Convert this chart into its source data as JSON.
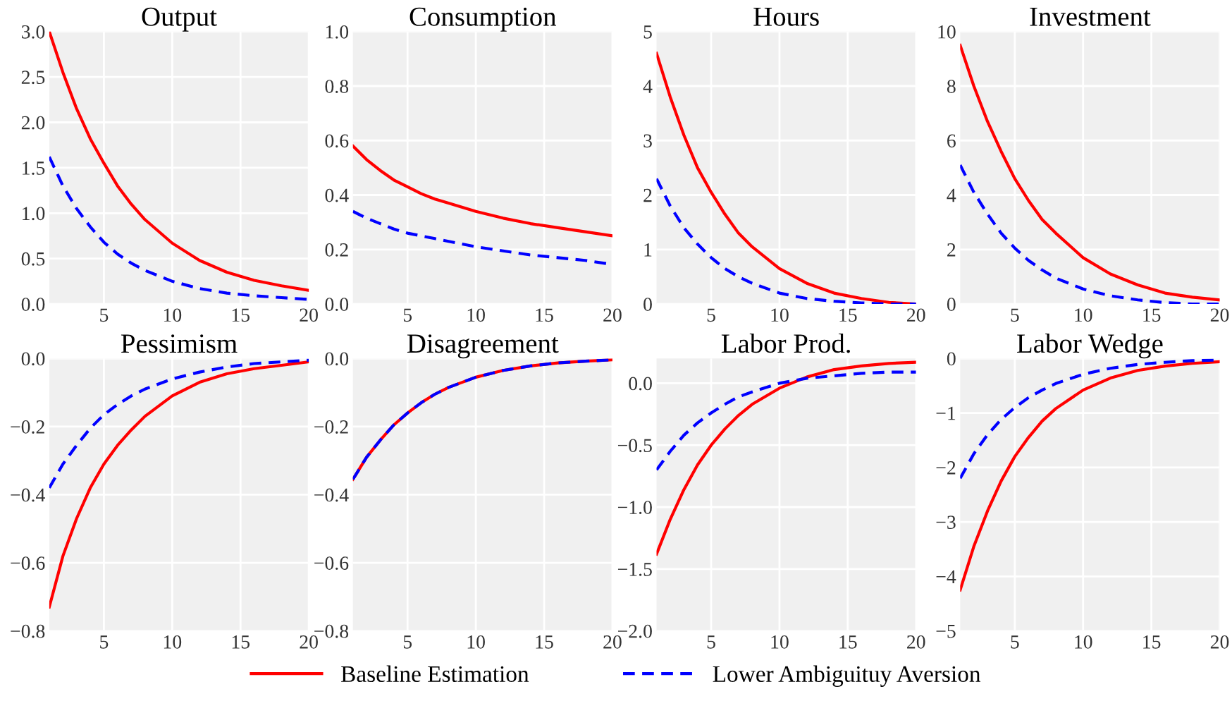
{
  "chart_data": [
    {
      "type": "line",
      "title": "Output",
      "x": [
        1,
        2,
        3,
        4,
        5,
        6,
        7,
        8,
        10,
        12,
        14,
        16,
        18,
        20
      ],
      "xlim": [
        1,
        20
      ],
      "xticks": [
        5,
        10,
        15,
        20
      ],
      "ylim": [
        0,
        3
      ],
      "yticks": [
        {
          "value": 0,
          "label": "0.0"
        },
        {
          "value": 0.5,
          "label": "0.5"
        },
        {
          "value": 1,
          "label": "1.0"
        },
        {
          "value": 1.5,
          "label": "1.5"
        },
        {
          "value": 2,
          "label": "2.0"
        },
        {
          "value": 2.5,
          "label": "2.5"
        },
        {
          "value": 3,
          "label": "3.0"
        }
      ],
      "grid": true,
      "legend": "bottom",
      "series": [
        {
          "name": "Baseline Estimation",
          "color": "#ff0000",
          "line_style": "solid",
          "values": [
            3.0,
            2.55,
            2.15,
            1.82,
            1.55,
            1.3,
            1.1,
            0.93,
            0.67,
            0.48,
            0.35,
            0.26,
            0.2,
            0.15
          ]
        },
        {
          "name": "Lower Ambiguituy Aversion",
          "color": "#0000ff",
          "line_style": "dashed",
          "values": [
            1.62,
            1.3,
            1.05,
            0.85,
            0.68,
            0.55,
            0.45,
            0.37,
            0.25,
            0.17,
            0.12,
            0.09,
            0.07,
            0.05
          ]
        }
      ]
    },
    {
      "type": "line",
      "title": "Consumption",
      "x": [
        1,
        2,
        3,
        4,
        5,
        6,
        7,
        8,
        10,
        12,
        14,
        16,
        18,
        20
      ],
      "xlim": [
        1,
        20
      ],
      "xticks": [
        5,
        10,
        15,
        20
      ],
      "ylim": [
        0,
        1
      ],
      "yticks": [
        {
          "value": 0,
          "label": "0.0"
        },
        {
          "value": 0.2,
          "label": "0.2"
        },
        {
          "value": 0.4,
          "label": "0.4"
        },
        {
          "value": 0.6,
          "label": "0.6"
        },
        {
          "value": 0.8,
          "label": "0.8"
        },
        {
          "value": 1,
          "label": "1.0"
        }
      ],
      "grid": true,
      "series": [
        {
          "name": "Baseline Estimation",
          "color": "#ff0000",
          "line_style": "solid",
          "values": [
            0.58,
            0.53,
            0.49,
            0.455,
            0.43,
            0.405,
            0.385,
            0.37,
            0.34,
            0.315,
            0.295,
            0.28,
            0.265,
            0.25
          ]
        },
        {
          "name": "Lower Ambiguituy Aversion",
          "color": "#0000ff",
          "line_style": "dashed",
          "values": [
            0.34,
            0.315,
            0.295,
            0.275,
            0.26,
            0.25,
            0.24,
            0.23,
            0.21,
            0.195,
            0.18,
            0.17,
            0.16,
            0.145
          ]
        }
      ]
    },
    {
      "type": "line",
      "title": "Hours",
      "x": [
        1,
        2,
        3,
        4,
        5,
        6,
        7,
        8,
        10,
        12,
        14,
        16,
        18,
        20
      ],
      "xlim": [
        1,
        20
      ],
      "xticks": [
        5,
        10,
        15,
        20
      ],
      "ylim": [
        0,
        5
      ],
      "yticks": [
        0,
        1,
        2,
        3,
        4,
        5
      ],
      "grid": true,
      "series": [
        {
          "name": "Baseline Estimation",
          "color": "#ff0000",
          "line_style": "solid",
          "values": [
            4.6,
            3.8,
            3.1,
            2.5,
            2.05,
            1.65,
            1.3,
            1.05,
            0.65,
            0.38,
            0.2,
            0.1,
            0.03,
            0
          ]
        },
        {
          "name": "Lower Ambiguituy Aversion",
          "color": "#0000ff",
          "line_style": "dashed",
          "values": [
            2.3,
            1.8,
            1.4,
            1.1,
            0.85,
            0.65,
            0.5,
            0.38,
            0.2,
            0.1,
            0.05,
            0.02,
            0,
            0
          ]
        }
      ]
    },
    {
      "type": "line",
      "title": "Investment",
      "x": [
        1,
        2,
        3,
        4,
        5,
        6,
        7,
        8,
        10,
        12,
        14,
        16,
        18,
        20
      ],
      "xlim": [
        1,
        20
      ],
      "xticks": [
        5,
        10,
        15,
        20
      ],
      "ylim": [
        0,
        10
      ],
      "yticks": [
        0,
        2,
        4,
        6,
        8,
        10
      ],
      "grid": true,
      "series": [
        {
          "name": "Baseline Estimation",
          "color": "#ff0000",
          "line_style": "solid",
          "values": [
            9.5,
            8.0,
            6.7,
            5.6,
            4.6,
            3.8,
            3.1,
            2.6,
            1.7,
            1.1,
            0.7,
            0.4,
            0.25,
            0.15
          ]
        },
        {
          "name": "Lower Ambiguituy Aversion",
          "color": "#0000ff",
          "line_style": "dashed",
          "values": [
            5.1,
            4.1,
            3.3,
            2.6,
            2.05,
            1.6,
            1.25,
            0.95,
            0.55,
            0.3,
            0.15,
            0.05,
            0,
            0
          ]
        }
      ]
    },
    {
      "type": "line",
      "title": "Pessimism",
      "x": [
        1,
        2,
        3,
        4,
        5,
        6,
        7,
        8,
        10,
        12,
        14,
        16,
        18,
        20
      ],
      "xlim": [
        1,
        20
      ],
      "xticks": [
        5,
        10,
        15,
        20
      ],
      "ylim": [
        -0.8,
        0
      ],
      "yticks": [
        {
          "value": -0.8,
          "label": "−0.8"
        },
        {
          "value": -0.6,
          "label": "−0.6"
        },
        {
          "value": -0.4,
          "label": "−0.4"
        },
        {
          "value": -0.2,
          "label": "−0.2"
        },
        {
          "value": 0,
          "label": "0.0"
        }
      ],
      "grid": true,
      "series": [
        {
          "name": "Baseline Estimation",
          "color": "#ff0000",
          "line_style": "solid",
          "values": [
            -0.73,
            -0.58,
            -0.47,
            -0.38,
            -0.31,
            -0.255,
            -0.21,
            -0.17,
            -0.11,
            -0.07,
            -0.045,
            -0.03,
            -0.02,
            -0.01
          ]
        },
        {
          "name": "Lower Ambiguituy Aversion",
          "color": "#0000ff",
          "line_style": "dashed",
          "values": [
            -0.38,
            -0.31,
            -0.255,
            -0.205,
            -0.165,
            -0.135,
            -0.11,
            -0.09,
            -0.06,
            -0.04,
            -0.025,
            -0.015,
            -0.01,
            -0.005
          ]
        }
      ]
    },
    {
      "type": "line",
      "title": "Disagreement",
      "x": [
        1,
        2,
        3,
        4,
        5,
        6,
        7,
        8,
        10,
        12,
        14,
        16,
        18,
        20
      ],
      "xlim": [
        1,
        20
      ],
      "xticks": [
        5,
        10,
        15,
        20
      ],
      "ylim": [
        -0.8,
        0
      ],
      "yticks": [
        {
          "value": -0.8,
          "label": "−0.8"
        },
        {
          "value": -0.6,
          "label": "−0.6"
        },
        {
          "value": -0.4,
          "label": "−0.4"
        },
        {
          "value": -0.2,
          "label": "−0.2"
        },
        {
          "value": 0,
          "label": "0.0"
        }
      ],
      "grid": true,
      "series": [
        {
          "name": "Baseline Estimation",
          "color": "#ff0000",
          "line_style": "solid",
          "values": [
            -0.355,
            -0.29,
            -0.24,
            -0.195,
            -0.16,
            -0.13,
            -0.105,
            -0.085,
            -0.055,
            -0.035,
            -0.022,
            -0.013,
            -0.008,
            -0.004
          ]
        },
        {
          "name": "Lower Ambiguituy Aversion",
          "color": "#0000ff",
          "line_style": "dashed",
          "values": [
            -0.355,
            -0.29,
            -0.24,
            -0.195,
            -0.16,
            -0.13,
            -0.105,
            -0.085,
            -0.055,
            -0.035,
            -0.022,
            -0.013,
            -0.008,
            -0.004
          ]
        }
      ]
    },
    {
      "type": "line",
      "title": "Labor Prod.",
      "x": [
        1,
        2,
        3,
        4,
        5,
        6,
        7,
        8,
        10,
        12,
        14,
        16,
        18,
        20
      ],
      "xlim": [
        1,
        20
      ],
      "xticks": [
        5,
        10,
        15,
        20
      ],
      "ylim": [
        -2,
        0.2
      ],
      "yticks": [
        {
          "value": -2,
          "label": "−2.0"
        },
        {
          "value": -1.5,
          "label": "−1.5"
        },
        {
          "value": -1,
          "label": "−1.0"
        },
        {
          "value": -0.5,
          "label": "−0.5"
        },
        {
          "value": 0,
          "label": "0.0"
        }
      ],
      "grid": true,
      "series": [
        {
          "name": "Baseline Estimation",
          "color": "#ff0000",
          "line_style": "solid",
          "values": [
            -1.38,
            -1.1,
            -0.86,
            -0.66,
            -0.5,
            -0.37,
            -0.26,
            -0.17,
            -0.04,
            0.05,
            0.11,
            0.14,
            0.16,
            0.17
          ]
        },
        {
          "name": "Lower Ambiguituy Aversion",
          "color": "#0000ff",
          "line_style": "dashed",
          "values": [
            -0.7,
            -0.55,
            -0.42,
            -0.32,
            -0.24,
            -0.17,
            -0.11,
            -0.07,
            0.0,
            0.04,
            0.06,
            0.08,
            0.09,
            0.09
          ]
        }
      ]
    },
    {
      "type": "line",
      "title": "Labor Wedge",
      "x": [
        1,
        2,
        3,
        4,
        5,
        6,
        7,
        8,
        10,
        12,
        14,
        16,
        18,
        20
      ],
      "xlim": [
        1,
        20
      ],
      "xticks": [
        5,
        10,
        15,
        20
      ],
      "ylim": [
        -5,
        0
      ],
      "yticks": [
        {
          "value": -5,
          "label": "−5"
        },
        {
          "value": -4,
          "label": "−4"
        },
        {
          "value": -3,
          "label": "−3"
        },
        {
          "value": -2,
          "label": "−2"
        },
        {
          "value": -1,
          "label": "−1"
        },
        {
          "value": 0,
          "label": "0"
        }
      ],
      "grid": true,
      "series": [
        {
          "name": "Baseline Estimation",
          "color": "#ff0000",
          "line_style": "solid",
          "values": [
            -4.25,
            -3.45,
            -2.8,
            -2.25,
            -1.8,
            -1.45,
            -1.15,
            -0.92,
            -0.58,
            -0.36,
            -0.22,
            -0.14,
            -0.09,
            -0.06
          ]
        },
        {
          "name": "Lower Ambiguituy Aversion",
          "color": "#0000ff",
          "line_style": "dashed",
          "values": [
            -2.2,
            -1.75,
            -1.4,
            -1.12,
            -0.9,
            -0.72,
            -0.58,
            -0.46,
            -0.29,
            -0.18,
            -0.11,
            -0.07,
            -0.04,
            -0.03
          ]
        }
      ]
    }
  ]
}
